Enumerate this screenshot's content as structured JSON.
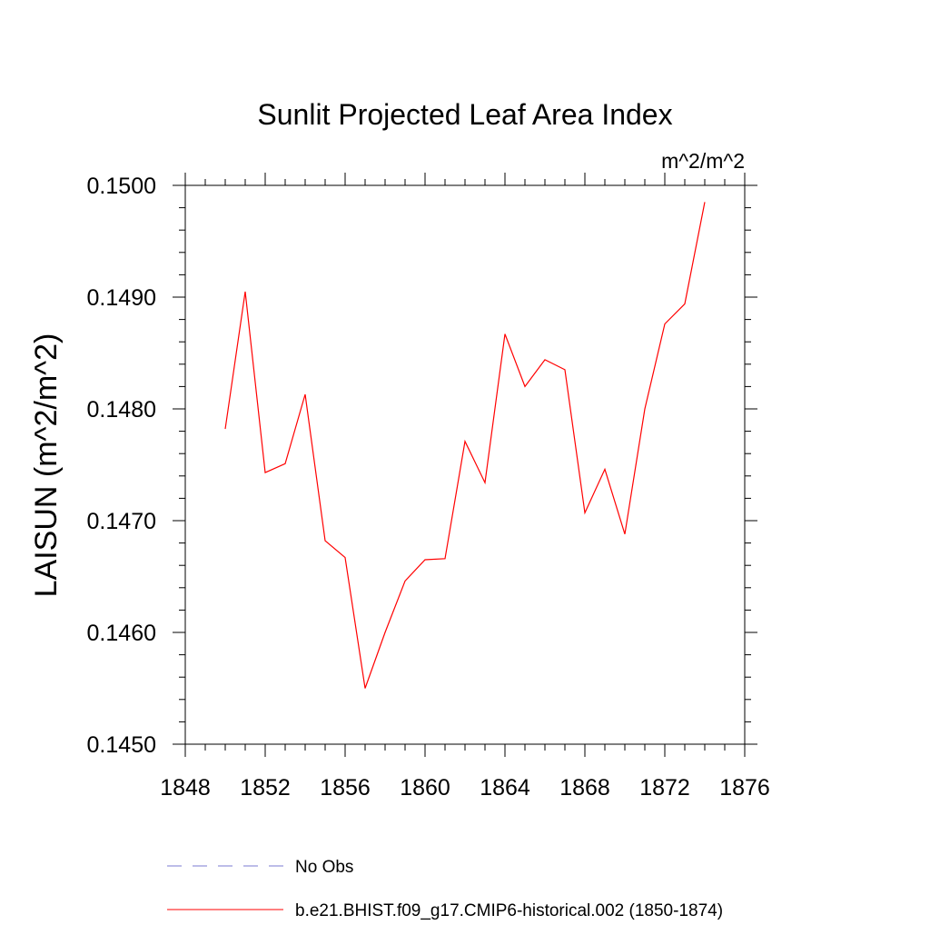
{
  "chart_data": {
    "type": "line",
    "title": "Sunlit Projected Leaf Area Index",
    "units_label": "m^2/m^2",
    "ylabel": "LAISUN  (m^2/m^2)",
    "xlabel": "",
    "xlim": [
      1848,
      1876
    ],
    "ylim": [
      0.145,
      0.15
    ],
    "x_ticks": [
      "1848",
      "1852",
      "1856",
      "1860",
      "1864",
      "1868",
      "1872",
      "1876"
    ],
    "y_ticks": [
      "0.1450",
      "0.1460",
      "0.1470",
      "0.1480",
      "0.1490",
      "0.1500"
    ],
    "grid": false,
    "series": [
      {
        "name": "b.e21.BHIST.f09_g17.CMIP6-historical.002 (1850-1874)",
        "color": "#ff0000",
        "style": "solid",
        "x": [
          1850,
          1851,
          1852,
          1853,
          1854,
          1855,
          1856,
          1857,
          1858,
          1859,
          1860,
          1861,
          1862,
          1863,
          1864,
          1865,
          1866,
          1867,
          1868,
          1869,
          1870,
          1871,
          1872,
          1873,
          1874
        ],
        "y": [
          0.14782,
          0.14905,
          0.14743,
          0.14751,
          0.14813,
          0.14682,
          0.14667,
          0.1455,
          0.146,
          0.14646,
          0.14665,
          0.14666,
          0.14771,
          0.14734,
          0.14867,
          0.1482,
          0.14844,
          0.14835,
          0.14707,
          0.14746,
          0.14688,
          0.148,
          0.14876,
          0.14894,
          0.14985
        ]
      }
    ],
    "legend": {
      "position": "bottom",
      "entries": [
        {
          "label": "No Obs",
          "color": "#7b7bd0",
          "style": "dashed"
        },
        {
          "label": "b.e21.BHIST.f09_g17.CMIP6-historical.002 (1850-1874)",
          "color": "#ff0000",
          "style": "solid"
        }
      ]
    }
  }
}
